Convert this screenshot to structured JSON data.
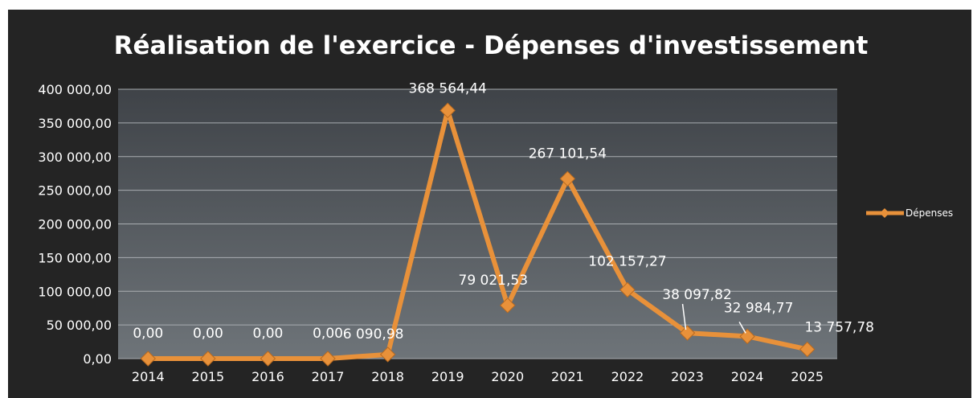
{
  "chart_data": {
    "type": "line",
    "title": "Réalisation de l'exercice - Dépenses d'investissement",
    "xlabel": "",
    "ylabel": "",
    "categories": [
      "2014",
      "2015",
      "2016",
      "2017",
      "2018",
      "2019",
      "2020",
      "2021",
      "2022",
      "2023",
      "2024",
      "2025"
    ],
    "series": [
      {
        "name": "Dépenses",
        "values": [
          0,
          0,
          0,
          0,
          6090.98,
          368564.44,
          79021.53,
          267101.54,
          102157.27,
          38097.82,
          32984.77,
          13757.78
        ],
        "labels": [
          "0,00",
          "0,00",
          "0,00",
          "0,00",
          "6 090,98",
          "368 564,44",
          "79 021,53",
          "267 101,54",
          "102 157,27",
          "38 097,82",
          "32 984,77",
          "13 757,78"
        ],
        "color": "#E8913A"
      }
    ],
    "ylim": [
      0,
      400000
    ],
    "yticks": [
      0,
      50000,
      100000,
      150000,
      200000,
      250000,
      300000,
      350000,
      400000
    ],
    "ytick_labels": [
      "0,00",
      "50 000,00",
      "100 000,00",
      "150 000,00",
      "200 000,00",
      "250 000,00",
      "300 000,00",
      "350 000,00",
      "400 000,00"
    ],
    "grid": true,
    "legend_position": "right",
    "colors": {
      "frame_background": "#242424",
      "plot_background_top": "#3f4348",
      "plot_background_bottom": "#6e7479",
      "gridline": "#a9adb1",
      "axis_text": "#ffffff",
      "marker": "#E8913A"
    }
  }
}
